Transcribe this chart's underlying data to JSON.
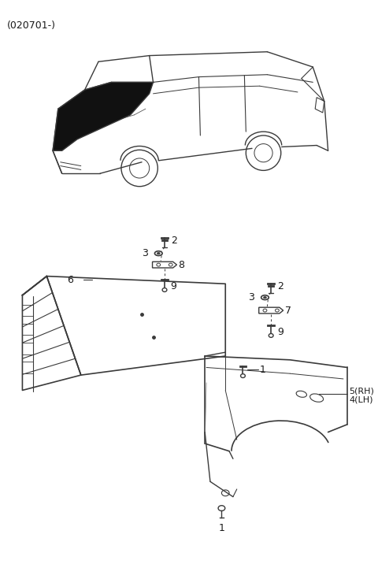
{
  "title": "(020701-)",
  "bg_color": "#ffffff",
  "line_color": "#3a3a3a",
  "text_color": "#1a1a1a",
  "fig_width": 4.8,
  "fig_height": 7.35,
  "dpi": 100
}
